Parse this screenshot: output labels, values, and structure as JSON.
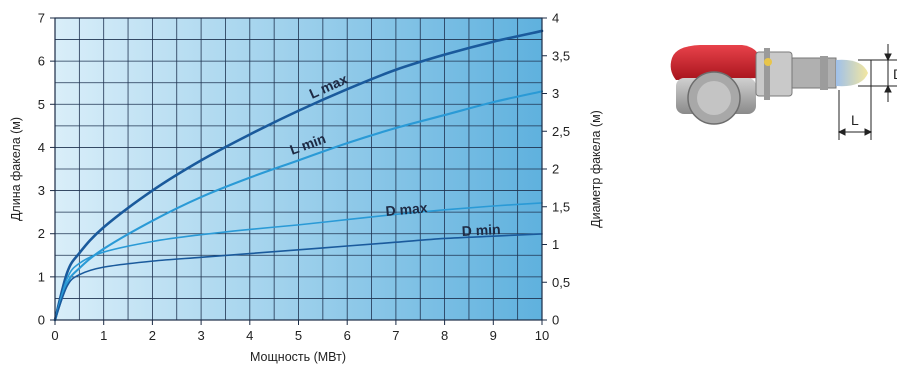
{
  "chart_data": {
    "type": "line",
    "xlabel": "Мощность (МВт)",
    "ylabel": "Длина факела (м)",
    "y2label": "Диаметр факела (м)",
    "xlim": [
      0,
      10
    ],
    "ylim": [
      0,
      7
    ],
    "y2lim": [
      0,
      4
    ],
    "x_ticks": [
      "0",
      "1",
      "2",
      "3",
      "4",
      "5",
      "6",
      "7",
      "8",
      "9",
      "10"
    ],
    "y_ticks": [
      "0",
      "1",
      "2",
      "3",
      "4",
      "5",
      "6",
      "7"
    ],
    "y2_ticks": [
      "0",
      "0,5",
      "1",
      "1,5",
      "2",
      "2,5",
      "3",
      "3,5",
      "4"
    ],
    "grid": true,
    "series": [
      {
        "name": "L max",
        "axis": "left",
        "color": "#1a5a9c",
        "x": [
          0,
          0.25,
          0.5,
          1,
          2,
          3,
          4,
          5,
          6,
          7,
          8,
          9,
          10
        ],
        "y": [
          0,
          1.1,
          1.55,
          2.15,
          3.0,
          3.7,
          4.3,
          4.85,
          5.35,
          5.8,
          6.15,
          6.45,
          6.7
        ]
      },
      {
        "name": "L min",
        "axis": "left",
        "color": "#2a9ad6",
        "x": [
          0,
          0.25,
          0.5,
          1,
          2,
          3,
          4,
          5,
          6,
          7,
          8,
          9,
          10
        ],
        "y": [
          0,
          0.85,
          1.2,
          1.65,
          2.3,
          2.85,
          3.3,
          3.7,
          4.1,
          4.45,
          4.75,
          5.05,
          5.3
        ]
      },
      {
        "name": "D max",
        "axis": "right",
        "color": "#2a9ad6",
        "x": [
          0,
          0.25,
          0.5,
          1,
          2,
          3,
          4,
          5,
          6,
          7,
          8,
          9,
          10
        ],
        "y": [
          0,
          0.55,
          0.75,
          0.9,
          1.04,
          1.13,
          1.2,
          1.26,
          1.33,
          1.4,
          1.46,
          1.51,
          1.55
        ]
      },
      {
        "name": "D min",
        "axis": "right",
        "color": "#1a5a9c",
        "x": [
          0,
          0.25,
          0.5,
          1,
          2,
          3,
          4,
          5,
          6,
          7,
          8,
          9,
          10
        ],
        "y": [
          0,
          0.45,
          0.6,
          0.7,
          0.78,
          0.83,
          0.88,
          0.93,
          0.98,
          1.03,
          1.08,
          1.11,
          1.14
        ]
      }
    ]
  },
  "diagram": {
    "length_marker": "L",
    "diameter_marker": "D"
  }
}
